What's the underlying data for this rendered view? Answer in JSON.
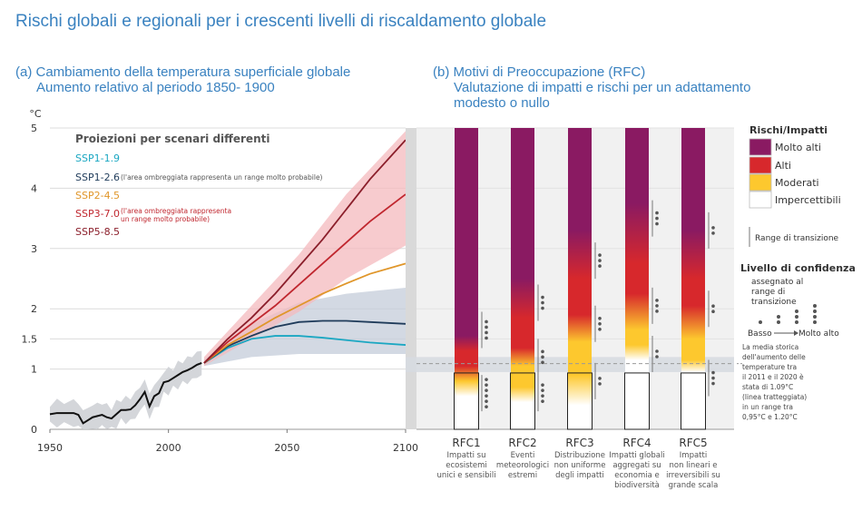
{
  "title": "Rischi globali e regionali per i crescenti livelli di riscaldamento globale",
  "panel_a": {
    "title_line1": "(a) Cambiamento della temperatura superficiale globale",
    "title_line2": "Aumento relativo al periodo 1850- 1900"
  },
  "panel_b": {
    "title_line1": "(b) Motivi di Preoccupazione (RFC)",
    "title_line2": "Valutazione di impatti e rischi  per un adattamento",
    "title_line3": "modesto o nullo"
  },
  "colors": {
    "title_blue": "#3a82c0",
    "ssp119": "#1ba7c2",
    "ssp126": "#1f3b5a",
    "ssp245": "#e0962a",
    "ssp370": "#c0272f",
    "ssp585": "#8b1f2b",
    "very_high": "#8a1a62",
    "high": "#d7282c",
    "moderate": "#fdc82e",
    "undetectable": "#ffffff",
    "band_gray": "#d6dae0"
  },
  "chart_data": [
    {
      "type": "line",
      "ylabel": "°C",
      "xlim": [
        1950,
        2100
      ],
      "ylim": [
        0,
        5
      ],
      "x_ticks": [
        "1950",
        "2000",
        "2050",
        "2100"
      ],
      "y_ticks": [
        "0",
        "1",
        "1.5",
        "2",
        "3",
        "4",
        "5"
      ],
      "legend_title": "Proiezioni per scenari differenti",
      "legend_notes": {
        "ssp126": "(l'area ombreggiata rappresenta un range molto probabile)",
        "ssp370_l1": "(l'area ombreggiata rappresenta",
        "ssp370_l2": "un range molto probabile)"
      },
      "historical": {
        "x": [
          1950,
          1953,
          1956,
          1960,
          1962,
          1964,
          1966,
          1968,
          1970,
          1972,
          1974,
          1976,
          1978,
          1980,
          1982,
          1984,
          1986,
          1988,
          1990,
          1992,
          1994,
          1996,
          1998,
          2000,
          2002,
          2004,
          2006,
          2008,
          2010,
          2012,
          2014
        ],
        "y": [
          0.25,
          0.27,
          0.27,
          0.27,
          0.24,
          0.1,
          0.15,
          0.2,
          0.22,
          0.24,
          0.2,
          0.18,
          0.25,
          0.32,
          0.32,
          0.33,
          0.4,
          0.5,
          0.62,
          0.38,
          0.55,
          0.6,
          0.78,
          0.8,
          0.85,
          0.9,
          0.95,
          0.98,
          1.02,
          1.07,
          1.1
        ]
      },
      "series": [
        {
          "name": "SSP1-1.9",
          "x": [
            2015,
            2025,
            2035,
            2045,
            2055,
            2065,
            2075,
            2085,
            2100
          ],
          "y": [
            1.1,
            1.35,
            1.5,
            1.55,
            1.55,
            1.52,
            1.48,
            1.44,
            1.4
          ]
        },
        {
          "name": "SSP1-2.6",
          "x": [
            2015,
            2025,
            2035,
            2045,
            2055,
            2065,
            2075,
            2085,
            2100
          ],
          "y": [
            1.1,
            1.38,
            1.55,
            1.7,
            1.78,
            1.8,
            1.8,
            1.78,
            1.75
          ]
        },
        {
          "name": "SSP2-4.5",
          "x": [
            2015,
            2025,
            2035,
            2045,
            2055,
            2065,
            2075,
            2085,
            2100
          ],
          "y": [
            1.1,
            1.4,
            1.62,
            1.85,
            2.05,
            2.25,
            2.42,
            2.58,
            2.75
          ]
        },
        {
          "name": "SSP3-7.0",
          "x": [
            2015,
            2025,
            2035,
            2045,
            2055,
            2065,
            2075,
            2085,
            2100
          ],
          "y": [
            1.1,
            1.45,
            1.75,
            2.05,
            2.4,
            2.75,
            3.1,
            3.45,
            3.9
          ]
        },
        {
          "name": "SSP5-8.5",
          "x": [
            2015,
            2025,
            2035,
            2045,
            2055,
            2065,
            2075,
            2085,
            2100
          ],
          "y": [
            1.1,
            1.5,
            1.85,
            2.25,
            2.7,
            3.15,
            3.65,
            4.15,
            4.8
          ]
        }
      ],
      "bands": [
        {
          "name": "SSP1-2.6",
          "x": [
            2015,
            2035,
            2055,
            2075,
            2100
          ],
          "lower": [
            1.05,
            1.2,
            1.25,
            1.25,
            1.25
          ],
          "upper": [
            1.15,
            1.75,
            2.1,
            2.25,
            2.35
          ]
        },
        {
          "name": "SSP3-7.0",
          "x": [
            2015,
            2035,
            2055,
            2075,
            2100
          ],
          "lower": [
            1.05,
            1.5,
            1.95,
            2.5,
            3.05
          ],
          "upper": [
            1.2,
            2.05,
            2.9,
            3.9,
            4.95
          ]
        }
      ]
    },
    {
      "type": "heatmap",
      "y_scale": "°C",
      "ylim": [
        0,
        5
      ],
      "categories": [
        {
          "code": "RFC1",
          "label": "Impatti su ecosistemi unici e sensibili",
          "lines": [
            "Impatti su",
            "ecosistemi",
            "unici e sensibili"
          ],
          "stops": [
            [
              0.0,
              "undetectable"
            ],
            [
              0.55,
              "undetectable"
            ],
            [
              0.8,
              "moderate"
            ],
            [
              1.05,
              "high"
            ],
            [
              1.3,
              "high"
            ],
            [
              1.55,
              "very_high"
            ],
            [
              5,
              "very_high"
            ]
          ],
          "confidence": [
            {
              "y": 1.65,
              "dots": 4
            },
            {
              "y": 0.6,
              "dots": 6
            }
          ]
        },
        {
          "code": "RFC2",
          "label": "Eventi meteorologici estremi",
          "lines": [
            "Eventi",
            "meteorologici",
            "estremi"
          ],
          "stops": [
            [
              0.0,
              "undetectable"
            ],
            [
              0.45,
              "undetectable"
            ],
            [
              0.7,
              "moderate"
            ],
            [
              1.05,
              "moderate"
            ],
            [
              1.35,
              "high"
            ],
            [
              1.85,
              "high"
            ],
            [
              2.5,
              "very_high"
            ],
            [
              5,
              "very_high"
            ]
          ],
          "confidence": [
            {
              "y": 2.1,
              "dots": 3
            },
            {
              "y": 1.2,
              "dots": 3
            },
            {
              "y": 0.6,
              "dots": 4
            }
          ]
        },
        {
          "code": "RFC3",
          "label": "Distribuzione non uniforme degli impatti",
          "lines": [
            "Distribuzione",
            "non uniforme",
            "degli impatti"
          ],
          "stops": [
            [
              0.0,
              "undetectable"
            ],
            [
              0.4,
              "undetectable"
            ],
            [
              0.9,
              "moderate"
            ],
            [
              1.45,
              "moderate"
            ],
            [
              1.9,
              "high"
            ],
            [
              2.5,
              "high"
            ],
            [
              3.3,
              "very_high"
            ],
            [
              5,
              "very_high"
            ]
          ],
          "confidence": [
            {
              "y": 2.8,
              "dots": 3
            },
            {
              "y": 1.75,
              "dots": 3
            },
            {
              "y": 0.8,
              "dots": 2
            }
          ]
        },
        {
          "code": "RFC4",
          "label": "Impatti globali aggregati su economia e biodiversità",
          "lines": [
            "Impatti globali",
            "aggregati su",
            "economia e",
            "biodiversità"
          ],
          "stops": [
            [
              0.0,
              "undetectable"
            ],
            [
              1.15,
              "undetectable"
            ],
            [
              1.4,
              "moderate"
            ],
            [
              1.65,
              "moderate"
            ],
            [
              2.25,
              "high"
            ],
            [
              2.75,
              "high"
            ],
            [
              3.75,
              "very_high"
            ],
            [
              5,
              "very_high"
            ]
          ],
          "confidence": [
            {
              "y": 3.5,
              "dots": 3
            },
            {
              "y": 2.05,
              "dots": 3
            },
            {
              "y": 1.25,
              "dots": 2
            }
          ]
        },
        {
          "code": "RFC5",
          "label": "Impatti non lineari e irreversibili su grande scala",
          "lines": [
            "Impatti",
            "non lineari e",
            "irreversibili su",
            "grande scala"
          ],
          "stops": [
            [
              0.0,
              "undetectable"
            ],
            [
              0.95,
              "undetectable"
            ],
            [
              1.15,
              "moderate"
            ],
            [
              1.5,
              "moderate"
            ],
            [
              2.05,
              "high"
            ],
            [
              2.5,
              "high"
            ],
            [
              3.3,
              "very_high"
            ],
            [
              5,
              "very_high"
            ]
          ],
          "confidence": [
            {
              "y": 3.3,
              "dots": 2
            },
            {
              "y": 2.0,
              "dots": 2
            },
            {
              "y": 0.85,
              "dots": 3
            }
          ]
        }
      ],
      "historical_band": {
        "mean": 1.09,
        "low": 0.95,
        "high": 1.2
      }
    }
  ],
  "legend_b": {
    "title": "Rischi/Impatti",
    "levels": [
      {
        "label": "Molto alti",
        "color": "very_high"
      },
      {
        "label": "Alti",
        "color": "high"
      },
      {
        "label": "Moderati",
        "color": "moderate"
      },
      {
        "label": "Impercettibili",
        "color": "undetectable"
      }
    ],
    "transition_label": "Range di transizione",
    "confidence_title": "Livello di confidenza",
    "confidence_sub": [
      "assegnato al",
      "range di",
      "transizione"
    ],
    "low_label": "Basso",
    "high_label": "Molto alto",
    "note": [
      "La media storica",
      "dell'aumento delle",
      "temperature tra",
      "il 2011 e il 2020 è",
      "stata di 1.09°C",
      "(linea tratteggiata)",
      "in un range tra",
      "0,95°C e 1.20°C"
    ]
  }
}
